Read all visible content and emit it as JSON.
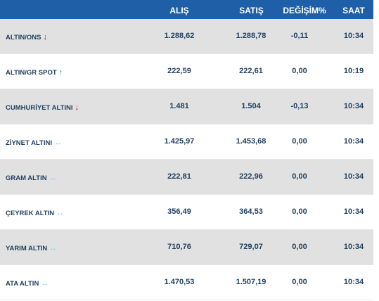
{
  "header": {
    "alis": "ALIŞ",
    "satis": "SATIŞ",
    "degisim": "DEĞİŞİM%",
    "saat": "SAAT"
  },
  "rows": [
    {
      "name": "ALTIN/ONS",
      "trend": "down",
      "arrow": "↓",
      "alis": "1.288,62",
      "satis": "1.288,78",
      "degisim": "-0,11",
      "saat": "10:34"
    },
    {
      "name": "ALTIN/GR SPOT",
      "trend": "up",
      "arrow": "↑",
      "alis": "222,59",
      "satis": "222,61",
      "degisim": "0,00",
      "saat": "10:19"
    },
    {
      "name": "CUMHURİYET ALTINI",
      "trend": "down",
      "arrow": "↓",
      "alis": "1.481",
      "satis": "1.504",
      "degisim": "-0,13",
      "saat": "10:34"
    },
    {
      "name": "ZİYNET ALTINI",
      "trend": "flat",
      "arrow": "↔",
      "alis": "1.425,97",
      "satis": "1.453,68",
      "degisim": "0,00",
      "saat": "10:34"
    },
    {
      "name": "GRAM ALTIN",
      "trend": "flat",
      "arrow": "↔",
      "alis": "222,81",
      "satis": "222,96",
      "degisim": "0,00",
      "saat": "10:34"
    },
    {
      "name": "ÇEYREK ALTIN",
      "trend": "flat",
      "arrow": "↔",
      "alis": "356,49",
      "satis": "364,53",
      "degisim": "0,00",
      "saat": "10:34"
    },
    {
      "name": "YARIM ALTIN",
      "trend": "flat",
      "arrow": "↔",
      "alis": "710,76",
      "satis": "729,07",
      "degisim": "0,00",
      "saat": "10:34"
    },
    {
      "name": "ATA ALTIN",
      "trend": "flat",
      "arrow": "↔",
      "alis": "1.470,53",
      "satis": "1.507,19",
      "degisim": "0,00",
      "saat": "10:34"
    }
  ]
}
